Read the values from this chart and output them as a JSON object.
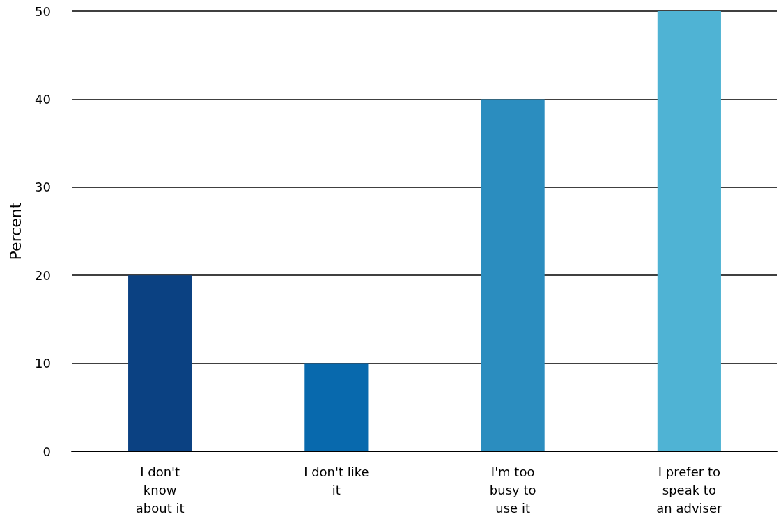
{
  "chart_data": {
    "type": "bar",
    "ylabel": "Percent",
    "categories": [
      "I don't\nknow\nabout it",
      "I don't like\nit",
      "I'm too\nbusy to\nuse it",
      "I prefer to\nspeak to\nan adviser"
    ],
    "values": [
      20,
      10,
      40,
      50
    ],
    "colors": [
      "#0b4182",
      "#0869ad",
      "#2b8dbf",
      "#4fb3d4"
    ],
    "ylim": [
      0,
      50
    ],
    "yticks": [
      0,
      10,
      20,
      30,
      40,
      50
    ],
    "grid": "y"
  }
}
